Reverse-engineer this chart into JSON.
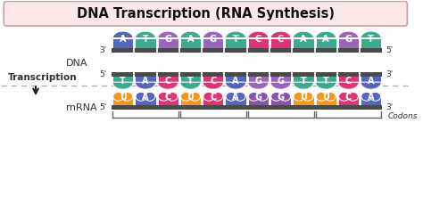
{
  "title": "DNA Transcription (RNA Synthesis)",
  "title_bg": "#fde8e8",
  "title_border": "#c8a0a0",
  "bg_color": "#ffffff",
  "dna_top_strand": [
    "A",
    "T",
    "G",
    "A",
    "G",
    "T",
    "C",
    "C",
    "A",
    "A",
    "G",
    "T"
  ],
  "dna_bot_strand": [
    "T",
    "A",
    "C",
    "T",
    "C",
    "A",
    "G",
    "G",
    "T",
    "T",
    "C",
    "A"
  ],
  "mrna_strand": [
    "U",
    "A",
    "C",
    "U",
    "C",
    "A",
    "G",
    "G",
    "U",
    "U",
    "C",
    "A"
  ],
  "dna_top_colors": [
    "#5566bb",
    "#3daa8f",
    "#9966bb",
    "#3daa8f",
    "#9966bb",
    "#3daa8f",
    "#dd3377",
    "#dd3377",
    "#3daa8f",
    "#3daa8f",
    "#9966bb",
    "#3daa8f"
  ],
  "dna_bot_colors": [
    "#3daa8f",
    "#5566bb",
    "#dd3377",
    "#3daa8f",
    "#dd3377",
    "#5566bb",
    "#9966bb",
    "#9966bb",
    "#3daa8f",
    "#3daa8f",
    "#dd3377",
    "#5566bb"
  ],
  "mrna_colors": [
    "#f5961e",
    "#5566bb",
    "#dd3377",
    "#f5961e",
    "#dd3377",
    "#5566bb",
    "#8855aa",
    "#8855aa",
    "#f5961e",
    "#f5961e",
    "#dd3377",
    "#5566bb"
  ],
  "bar_color": "#4a4a4a",
  "label_color": "#333333",
  "dna_label": "DNA",
  "transcription_label": "Transcription",
  "mrna_label": "mRNA",
  "codon_label": "Codons",
  "arrow_color": "#222222",
  "divider_color": "#bbbbbb",
  "fig_w": 4.74,
  "fig_h": 2.48,
  "dpi": 100
}
